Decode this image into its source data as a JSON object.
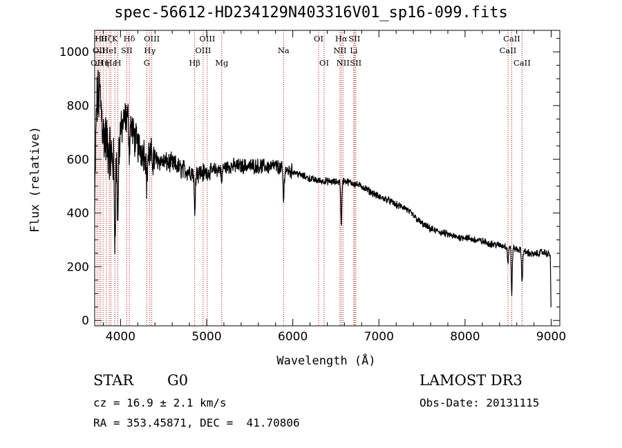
{
  "header": {
    "title": "spec-56612-HD234129N403316V01_sp16-099.fits"
  },
  "info": {
    "class": "STAR",
    "subclass": "G0",
    "survey": "LAMOST DR3",
    "cz": "cz = 16.9 ± 2.1 km/s",
    "obs_date": "Obs-Date: 20131115",
    "coords": "RA = 353.45871, DEC =  41.70806"
  },
  "chart_data": {
    "type": "line",
    "title": "spec-56612-HD234129N403316V01_sp16-099.fits",
    "xlabel": "Wavelength (Å)",
    "ylabel": "Flux (relative)",
    "xlim": [
      3700,
      9100
    ],
    "ylim": [
      -20,
      1080
    ],
    "xticks": [
      4000,
      5000,
      6000,
      7000,
      8000,
      9000
    ],
    "yticks": [
      0,
      200,
      400,
      600,
      800,
      1000
    ],
    "spectrum_anchors": {
      "x": [
        3700,
        3720,
        3760,
        3800,
        3850,
        3900,
        3950,
        4000,
        4050,
        4100,
        4150,
        4200,
        4300,
        4400,
        4500,
        4600,
        4700,
        4800,
        4900,
        5000,
        5100,
        5200,
        5300,
        5400,
        5500,
        5600,
        5700,
        5800,
        5900,
        6000,
        6100,
        6200,
        6300,
        6400,
        6500,
        6600,
        6700,
        6800,
        6900,
        7000,
        7100,
        7200,
        7300,
        7400,
        7500,
        7600,
        7700,
        7800,
        7900,
        8000,
        8100,
        8200,
        8300,
        8400,
        8500,
        8600,
        8700,
        8800,
        8900,
        8990,
        9000
      ],
      "y": [
        400,
        800,
        850,
        700,
        650,
        600,
        570,
        700,
        750,
        760,
        690,
        650,
        620,
        600,
        590,
        585,
        565,
        555,
        550,
        550,
        560,
        570,
        575,
        575,
        575,
        575,
        572,
        575,
        560,
        555,
        540,
        528,
        520,
        518,
        515,
        520,
        510,
        500,
        480,
        460,
        450,
        430,
        420,
        390,
        360,
        340,
        330,
        320,
        310,
        310,
        300,
        295,
        285,
        280,
        275,
        265,
        255,
        245,
        255,
        245,
        0
      ]
    },
    "absorption_features": [
      {
        "x": 3934,
        "depth": 260
      },
      {
        "x": 3969,
        "depth": 230
      },
      {
        "x": 4102,
        "depth": 120
      },
      {
        "x": 4305,
        "depth": 110
      },
      {
        "x": 4861,
        "depth": 150
      },
      {
        "x": 5175,
        "depth": 60
      },
      {
        "x": 5893,
        "depth": 120
      },
      {
        "x": 6563,
        "depth": 170
      },
      {
        "x": 8498,
        "depth": 60
      },
      {
        "x": 8542,
        "depth": 170
      },
      {
        "x": 8662,
        "depth": 120
      }
    ],
    "line_markers": [
      {
        "x": 3727,
        "label": "OII",
        "row": 2
      },
      {
        "x": 3750,
        "label": "OII",
        "row": 1
      },
      {
        "x": 3770,
        "label": "Hθ",
        "row": 0
      },
      {
        "x": 3798,
        "label": "Hη",
        "row": 2
      },
      {
        "x": 3835,
        "label": "Hζ",
        "row": 0
      },
      {
        "x": 3869,
        "label": "HeI",
        "row": 1
      },
      {
        "x": 3889,
        "label": "Hε",
        "row": 2
      },
      {
        "x": 3934,
        "label": "K",
        "row": 0
      },
      {
        "x": 3969,
        "label": "H",
        "row": 2
      },
      {
        "x": 4072,
        "label": "SII",
        "row": 1
      },
      {
        "x": 4102,
        "label": "Hδ",
        "row": 0
      },
      {
        "x": 4305,
        "label": "G",
        "row": 2
      },
      {
        "x": 4340,
        "label": "Hγ",
        "row": 1
      },
      {
        "x": 4363,
        "label": "OIII",
        "row": 0
      },
      {
        "x": 4861,
        "label": "Hβ",
        "row": 2
      },
      {
        "x": 4959,
        "label": "OIII",
        "row": 1
      },
      {
        "x": 5007,
        "label": "OIII",
        "row": 0
      },
      {
        "x": 5175,
        "label": "Mg",
        "row": 2
      },
      {
        "x": 5893,
        "label": "Na",
        "row": 1
      },
      {
        "x": 6300,
        "label": "OI",
        "row": 0
      },
      {
        "x": 6364,
        "label": "OI",
        "row": 2
      },
      {
        "x": 6548,
        "label": "NII",
        "row": 1
      },
      {
        "x": 6563,
        "label": "Hα",
        "row": 0
      },
      {
        "x": 6583,
        "label": "NII",
        "row": 2
      },
      {
        "x": 6708,
        "label": "Li",
        "row": 1
      },
      {
        "x": 6716,
        "label": "SII",
        "row": 0
      },
      {
        "x": 6731,
        "label": "SII",
        "row": 2
      },
      {
        "x": 8498,
        "label": "CaII",
        "row": 1
      },
      {
        "x": 8542,
        "label": "CaII",
        "row": 0
      },
      {
        "x": 8662,
        "label": "CaII",
        "row": 2
      }
    ]
  }
}
